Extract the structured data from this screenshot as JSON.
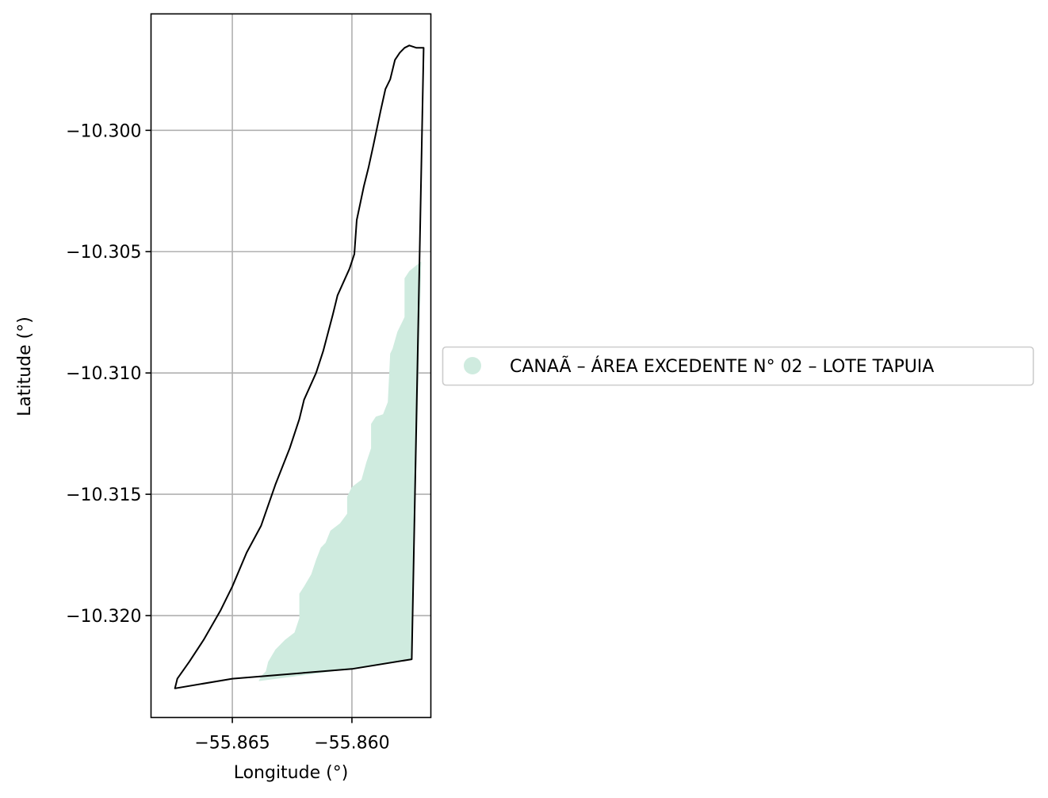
{
  "chart_data": {
    "type": "map",
    "xlabel": "Longitude (°)",
    "ylabel": "Latitude (°)",
    "x_ticks": [
      {
        "value": -55.865,
        "label": "−55.865"
      },
      {
        "value": -55.86,
        "label": "−55.860"
      }
    ],
    "y_ticks": [
      {
        "value": -10.3,
        "label": "−10.300"
      },
      {
        "value": -10.305,
        "label": "−10.305"
      },
      {
        "value": -10.31,
        "label": "−10.310"
      },
      {
        "value": -10.315,
        "label": "−10.315"
      },
      {
        "value": -10.32,
        "label": "−10.320"
      }
    ],
    "xlim": [
      -55.8684,
      -55.8567
    ],
    "ylim": [
      -10.3242,
      -10.2952
    ],
    "grid": true,
    "legend": {
      "placement": "center-left outside",
      "entries": [
        {
          "label": "CANAÃ – ÁREA EXCEDENTE N° 02 – LOTE TAPUIA",
          "color": "#cfebdf",
          "marker": "circle"
        }
      ]
    },
    "layers": [
      {
        "name": "boundary",
        "kind": "outline",
        "stroke": "#000000",
        "coords": [
          [
            -55.8573,
            -10.2966
          ],
          [
            -55.8576,
            -10.2965
          ],
          [
            -55.8578,
            -10.2966
          ],
          [
            -55.858,
            -10.2968
          ],
          [
            -55.8582,
            -10.2971
          ],
          [
            -55.8584,
            -10.2979
          ],
          [
            -55.8586,
            -10.2983
          ],
          [
            -55.8588,
            -10.2992
          ],
          [
            -55.8591,
            -10.3006
          ],
          [
            -55.8593,
            -10.3015
          ],
          [
            -55.8595,
            -10.3023
          ],
          [
            -55.8598,
            -10.3037
          ],
          [
            -55.8599,
            -10.3051
          ],
          [
            -55.8601,
            -10.3057
          ],
          [
            -55.8606,
            -10.3068
          ],
          [
            -55.8608,
            -10.3076
          ],
          [
            -55.8612,
            -10.3091
          ],
          [
            -55.8615,
            -10.31
          ],
          [
            -55.862,
            -10.3111
          ],
          [
            -55.8622,
            -10.3119
          ],
          [
            -55.8626,
            -10.3131
          ],
          [
            -55.8632,
            -10.3146
          ],
          [
            -55.8638,
            -10.3163
          ],
          [
            -55.8644,
            -10.3174
          ],
          [
            -55.865,
            -10.3188
          ],
          [
            -55.8655,
            -10.3198
          ],
          [
            -55.8662,
            -10.321
          ],
          [
            -55.8668,
            -10.3219
          ],
          [
            -55.8673,
            -10.3226
          ],
          [
            -55.8674,
            -10.323
          ],
          [
            -55.865,
            -10.3226
          ],
          [
            -55.86,
            -10.3222
          ],
          [
            -55.8575,
            -10.3218
          ],
          [
            -55.857,
            -10.2966
          ],
          [
            -55.8573,
            -10.2966
          ]
        ]
      },
      {
        "name": "CANAÃ – ÁREA EXCEDENTE N° 02 – LOTE TAPUIA",
        "kind": "filled",
        "fill": "#cfebdf",
        "coords": [
          [
            -55.8571,
            -10.3054
          ],
          [
            -55.8576,
            -10.3058
          ],
          [
            -55.8578,
            -10.3061
          ],
          [
            -55.8578,
            -10.3077
          ],
          [
            -55.8581,
            -10.3083
          ],
          [
            -55.8583,
            -10.309
          ],
          [
            -55.8584,
            -10.3092
          ],
          [
            -55.8585,
            -10.3112
          ],
          [
            -55.8587,
            -10.3117
          ],
          [
            -55.859,
            -10.3118
          ],
          [
            -55.8592,
            -10.3121
          ],
          [
            -55.8592,
            -10.3131
          ],
          [
            -55.8594,
            -10.3137
          ],
          [
            -55.8596,
            -10.3144
          ],
          [
            -55.86,
            -10.3147
          ],
          [
            -55.8602,
            -10.3151
          ],
          [
            -55.8602,
            -10.3158
          ],
          [
            -55.8605,
            -10.3162
          ],
          [
            -55.8609,
            -10.3165
          ],
          [
            -55.8611,
            -10.317
          ],
          [
            -55.8613,
            -10.3172
          ],
          [
            -55.8615,
            -10.3177
          ],
          [
            -55.8617,
            -10.3183
          ],
          [
            -55.862,
            -10.3188
          ],
          [
            -55.8622,
            -10.3191
          ],
          [
            -55.8622,
            -10.3201
          ],
          [
            -55.8624,
            -10.3207
          ],
          [
            -55.8628,
            -10.321
          ],
          [
            -55.8632,
            -10.3214
          ],
          [
            -55.8635,
            -10.3219
          ],
          [
            -55.8636,
            -10.3223
          ],
          [
            -55.8638,
            -10.3225
          ],
          [
            -55.8639,
            -10.3227
          ],
          [
            -55.86,
            -10.3222
          ],
          [
            -55.8575,
            -10.3218
          ],
          [
            -55.8571,
            -10.3054
          ]
        ]
      }
    ]
  }
}
